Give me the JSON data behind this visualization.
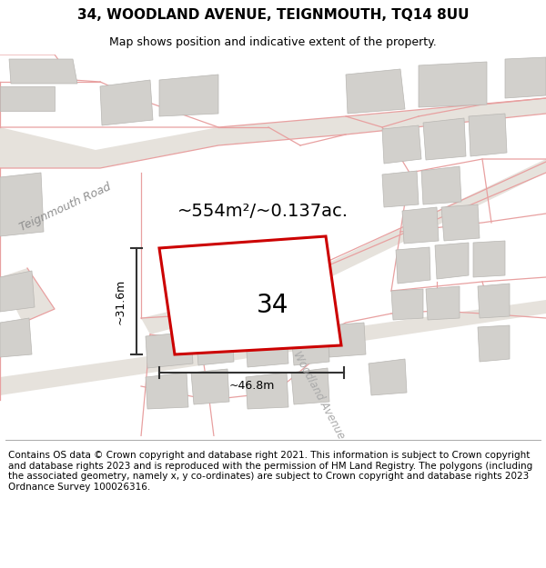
{
  "title": "34, WOODLAND AVENUE, TEIGNMOUTH, TQ14 8UU",
  "subtitle": "Map shows position and indicative extent of the property.",
  "footer": "Contains OS data © Crown copyright and database right 2021. This information is subject to Crown copyright and database rights 2023 and is reproduced with the permission of HM Land Registry. The polygons (including the associated geometry, namely x, y co-ordinates) are subject to Crown copyright and database rights 2023 Ordnance Survey 100026316.",
  "area_text": "~554m²/~0.137ac.",
  "label_34": "34",
  "dim_width": "~46.8m",
  "dim_height": "~31.6m",
  "road_label1": "Teignmouth Road",
  "road_label2": "Woodland Avenue",
  "map_bg": "#f0ede8",
  "road_fill": "#e6e2dc",
  "bld_fill": "#d2d0cc",
  "bld_edge": "#b8b6b2",
  "pink": "#e8a0a0",
  "red_plot": "#cc0000",
  "dim_color": "#333333",
  "title_fs": 11,
  "subtitle_fs": 9,
  "footer_fs": 7.5,
  "area_fs": 14,
  "label_fs": 20,
  "road_lbl_fs": 9,
  "dim_fs": 9
}
